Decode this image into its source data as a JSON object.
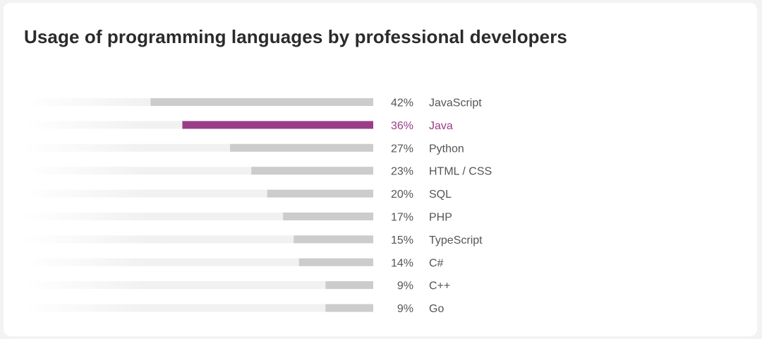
{
  "chart_data": {
    "type": "bar",
    "orientation": "horizontal",
    "title": "Usage of programming languages by professional developers",
    "unit": "%",
    "highlight": "Java",
    "categories": [
      "JavaScript",
      "Java",
      "Python",
      "HTML / CSS",
      "SQL",
      "PHP",
      "TypeScript",
      "C#",
      "C++",
      "Go"
    ],
    "values": [
      42,
      36,
      27,
      23,
      20,
      17,
      15,
      14,
      9,
      9
    ],
    "xlim": [
      0,
      100
    ],
    "grid": false,
    "legend": "none",
    "colors": {
      "bar": "#cccccc",
      "bar_highlight": "#9a3d87",
      "track": "#f1f1f1",
      "label": "#555555",
      "label_highlight": "#9a3d87",
      "title": "#2b2b2b"
    }
  }
}
